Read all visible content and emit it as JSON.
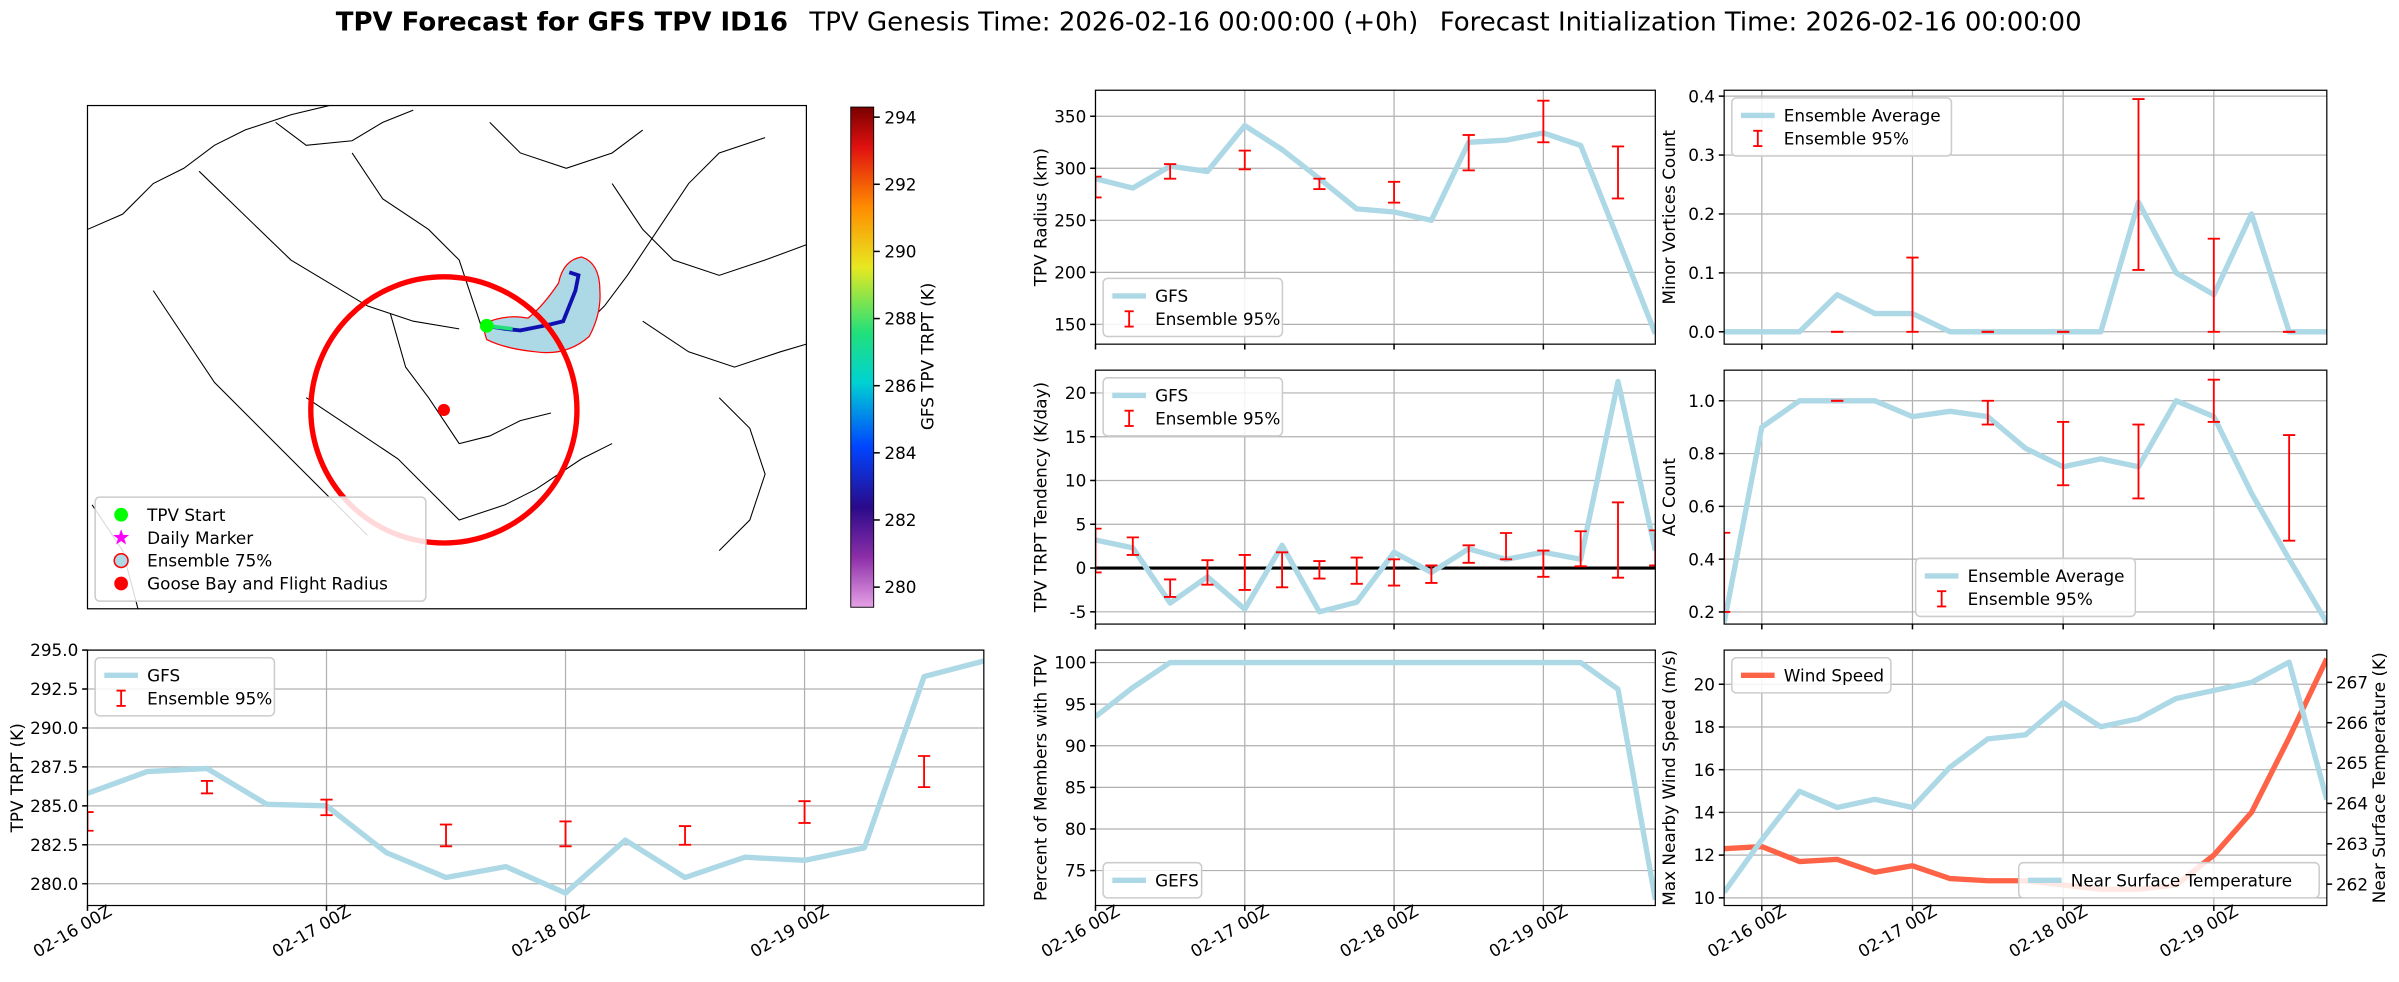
{
  "title": "TPV Forecast for GFS TPV ID16",
  "subtitles": [
    "TPV Genesis Time: 2026-02-16 00:00:00 (+0h)",
    "Forecast Initialization Time: 2026-02-16 00:00:00"
  ],
  "chart_data": [
    {
      "type": "map",
      "legend": "lower left",
      "markers": [
        {
          "name": "TPV Start",
          "color": "#00ff00",
          "marker": "circle"
        },
        {
          "name": "Daily Marker",
          "color": "#ff00ff",
          "marker": "star"
        },
        {
          "name": "Ensemble 75%",
          "color": "#add8e6",
          "marker": "ring"
        },
        {
          "name": "Goose Bay and Flight Radius",
          "color": "#ff0000",
          "marker": "circle"
        }
      ],
      "colorbar": {
        "label": "GFS TPV TRPT (K)",
        "lim": [
          279.4,
          294.3
        ],
        "ticks": [
          280,
          282,
          284,
          286,
          288,
          290,
          292,
          294
        ]
      }
    },
    {
      "type": "line",
      "ylabel": "TPV TRPT (K)",
      "legend": "upper left",
      "grid": true,
      "x": [
        "02-16 00Z",
        "02-16 06Z",
        "02-16 12Z",
        "02-16 18Z",
        "02-17 00Z",
        "02-17 06Z",
        "02-17 12Z",
        "02-17 18Z",
        "02-18 00Z",
        "02-18 06Z",
        "02-18 12Z",
        "02-18 18Z",
        "02-19 00Z",
        "02-19 06Z",
        "02-19 12Z",
        "02-19 18Z"
      ],
      "xticks": [
        "02-16 00Z",
        "02-17 00Z",
        "02-18 00Z",
        "02-19 00Z"
      ],
      "ylim": [
        278.6,
        295.0
      ],
      "yticks": [
        {
          "value": 280,
          "label": "280.0"
        },
        282.5,
        {
          "value": 285,
          "label": "285.0"
        },
        287.5,
        {
          "value": 290,
          "label": "290.0"
        },
        292.5,
        {
          "value": 295,
          "label": "295.0"
        }
      ],
      "series": [
        {
          "name": "GFS",
          "color": "#add8e6",
          "values": [
            285.8,
            287.2,
            287.4,
            285.1,
            285.0,
            282.0,
            280.4,
            281.1,
            279.4,
            282.8,
            280.4,
            281.7,
            281.5,
            282.3,
            293.3,
            294.3
          ]
        },
        {
          "name": "Ensemble 95%",
          "color": "#ff0000",
          "values": [
            284.0,
            null,
            286.2,
            null,
            284.9,
            null,
            283.1,
            null,
            283.2,
            null,
            283.1,
            null,
            284.6,
            null,
            287.2,
            null
          ],
          "errors": [
            0.6,
            null,
            0.4,
            null,
            0.5,
            null,
            0.7,
            null,
            0.8,
            null,
            0.6,
            null,
            0.7,
            null,
            1.0,
            null
          ]
        }
      ]
    },
    {
      "type": "line",
      "ylabel": "TPV Radius (km)",
      "legend": "lower left",
      "grid": true,
      "sharex": 4,
      "ylim": [
        131,
        375
      ],
      "yticks": [
        150,
        200,
        250,
        300,
        350
      ],
      "series": [
        {
          "name": "GFS",
          "color": "#add8e6",
          "values": [
            290,
            281,
            302,
            297,
            341,
            318,
            290,
            261,
            258,
            250,
            325,
            327,
            334,
            322,
            232,
            141
          ]
        },
        {
          "name": "Ensemble 95%",
          "color": "#ff0000",
          "values": [
            282,
            null,
            297,
            null,
            308,
            null,
            285,
            null,
            277,
            null,
            315,
            null,
            345,
            null,
            296,
            null
          ],
          "errors": [
            10,
            null,
            7,
            null,
            9,
            null,
            5,
            null,
            10,
            null,
            17,
            null,
            20,
            null,
            25,
            null
          ]
        }
      ]
    },
    {
      "type": "line",
      "ylabel": "TPV TRPT Tendency (K/day)",
      "legend": "upper left",
      "grid": true,
      "sharex": 4,
      "ylim": [
        -6.4,
        22.6
      ],
      "yticks": [
        -5,
        0,
        5,
        10,
        15,
        20
      ],
      "hline": 0,
      "series": [
        {
          "name": "GFS",
          "color": "#add8e6",
          "values": [
            3.2,
            2.3,
            -4,
            -1,
            -4.7,
            2.6,
            -5,
            -3.9,
            1.8,
            -0.5,
            2.2,
            1.0,
            1.8,
            1.0,
            21.3,
            2.0
          ]
        },
        {
          "name": "Ensemble 95%",
          "color": "#ff0000",
          "values": [
            2,
            2.5,
            -2.3,
            -0.5,
            -0.5,
            -0.2,
            -0.2,
            -0.3,
            -0.5,
            -0.7,
            1.6,
            2.5,
            0.5,
            2.2,
            3.2,
            2.3
          ],
          "errors": [
            2.5,
            1,
            1,
            1.4,
            2,
            2,
            1,
            1.5,
            1.5,
            1,
            1,
            1.5,
            1.5,
            2,
            4.3,
            2
          ]
        }
      ]
    },
    {
      "type": "line",
      "ylabel": "Percent of Members with TPV",
      "legend": "lower left",
      "grid": true,
      "x": [
        "02-16 00Z",
        "02-16 06Z",
        "02-16 12Z",
        "02-16 18Z",
        "02-17 00Z",
        "02-17 06Z",
        "02-17 12Z",
        "02-17 18Z",
        "02-18 00Z",
        "02-18 06Z",
        "02-18 12Z",
        "02-18 18Z",
        "02-19 00Z",
        "02-19 06Z",
        "02-19 12Z",
        "02-19 18Z"
      ],
      "xticks": [
        "02-16 00Z",
        "02-17 00Z",
        "02-18 00Z",
        "02-19 00Z"
      ],
      "ylim": [
        70.8,
        101.5
      ],
      "yticks": [
        75,
        80,
        85,
        90,
        95,
        100
      ],
      "series": [
        {
          "name": "GEFS",
          "color": "#add8e6",
          "values": [
            93.5,
            97,
            100,
            100,
            100,
            100,
            100,
            100,
            100,
            100,
            100,
            100,
            100,
            100,
            96.8,
            71.5
          ]
        }
      ]
    },
    {
      "type": "line",
      "ylabel": "Minor Vortices Count",
      "legend": "upper left",
      "grid": true,
      "sharex": 7,
      "ylim": [
        -0.021,
        0.41
      ],
      "yticks": [
        {
          "value": 0,
          "label": "0.0"
        },
        0.1,
        0.2,
        0.3,
        0.4
      ],
      "series": [
        {
          "name": "Ensemble Average",
          "color": "#add8e6",
          "values": [
            0,
            0,
            0,
            0.063,
            0.031,
            0.031,
            0,
            0,
            0,
            0,
            0,
            0.22,
            0.1,
            0.063,
            0.2,
            0,
            0
          ]
        },
        {
          "name": "Ensemble 95%",
          "color": "#ff0000",
          "values": [
            null,
            null,
            null,
            0,
            null,
            0.063,
            null,
            0,
            null,
            0,
            null,
            0.25,
            null,
            0.079,
            null,
            0,
            null
          ],
          "errors": [
            null,
            null,
            null,
            0,
            null,
            0.063,
            null,
            0,
            null,
            0,
            null,
            0.145,
            null,
            0.079,
            null,
            0,
            null
          ]
        }
      ]
    },
    {
      "type": "line",
      "ylabel": "AC Count",
      "legend": "lower center",
      "grid": true,
      "sharex": 7,
      "ylim": [
        0.154,
        1.116
      ],
      "yticks": [
        0.2,
        0.4,
        0.6,
        0.8,
        {
          "value": 1,
          "label": "1.0"
        }
      ],
      "series": [
        {
          "name": "Ensemble Average",
          "color": "#add8e6",
          "values": [
            0.16,
            0.9,
            1.0,
            1.0,
            1.0,
            0.94,
            0.96,
            0.94,
            0.82,
            0.75,
            0.78,
            0.75,
            1.0,
            0.94,
            0.65,
            0.4,
            0.16
          ]
        },
        {
          "name": "Ensemble 95%",
          "color": "#ff0000",
          "values": [
            0.35,
            null,
            null,
            1.0,
            null,
            null,
            null,
            0.955,
            null,
            0.8,
            null,
            0.77,
            null,
            1.0,
            null,
            0.67,
            null
          ],
          "errors": [
            0.15,
            null,
            null,
            0,
            null,
            null,
            null,
            0.045,
            null,
            0.12,
            null,
            0.14,
            null,
            0.08,
            null,
            0.2,
            null
          ]
        }
      ]
    },
    {
      "type": "line",
      "ylabel": "Max Nearby Wind Speed (m/s)",
      "y2label": "Near Surface Temperature (K)",
      "ycolor": "#ff6347",
      "y2color": "#4169e1",
      "grid": true,
      "x": [
        "02-15 18Z",
        "02-16 00Z",
        "02-16 06Z",
        "02-16 12Z",
        "02-16 18Z",
        "02-17 00Z",
        "02-17 06Z",
        "02-17 12Z",
        "02-17 18Z",
        "02-18 00Z",
        "02-18 06Z",
        "02-18 12Z",
        "02-18 18Z",
        "02-19 00Z",
        "02-19 06Z",
        "02-19 12Z",
        "02-19 18Z"
      ],
      "xticks": [
        "02-16 00Z",
        "02-17 00Z",
        "02-18 00Z",
        "02-19 00Z"
      ],
      "ylim": [
        9.64,
        21.6
      ],
      "yticks": [
        10,
        12,
        14,
        16,
        18,
        20
      ],
      "y2lim": [
        261.47,
        267.8
      ],
      "y2ticks": [
        262,
        263,
        264,
        265,
        266,
        267
      ],
      "series": [
        {
          "name": "Wind Speed",
          "color": "#ff6347",
          "legend": "upper left",
          "values": [
            12.3,
            12.4,
            11.7,
            11.8,
            11.2,
            11.5,
            10.9,
            10.8,
            10.8,
            10.6,
            10.4,
            10.4,
            10.6,
            12.0,
            14.0,
            17.5,
            21.2
          ]
        },
        {
          "name": "Near Surface Temperature",
          "color": "#add8e6",
          "legend": "lower right",
          "axis": "y2",
          "values": [
            261.8,
            263.1,
            264.3,
            263.9,
            264.1,
            263.9,
            264.9,
            265.6,
            265.7,
            266.5,
            265.9,
            266.1,
            266.6,
            266.8,
            267.0,
            267.5,
            264.1
          ]
        }
      ]
    }
  ]
}
